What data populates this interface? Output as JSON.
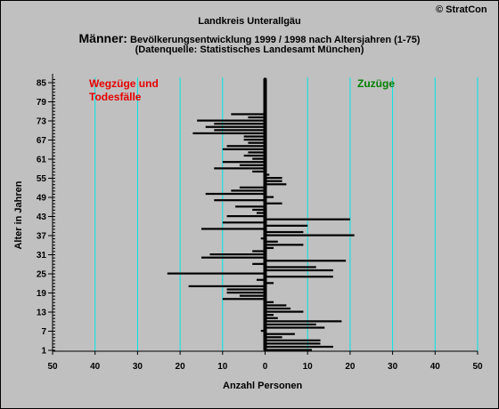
{
  "copyright": "© StratCon",
  "title_line1": "Landkreis Unterallgäu",
  "title_line2_big": "Männer:",
  "title_line2_rest": "Bevölkerungsentwicklung 1999 / 1998  nach Altersjahren (1-75)",
  "title_line3": "(Datenquelle: Statistisches Landesamt München)",
  "left_label_1": "Wegzüge und",
  "left_label_2": "Todesfälle",
  "right_label": "Zuzüge",
  "colors": {
    "background": "#c0c0c0",
    "grid": "#00e5e5",
    "bars": "#000000",
    "left_label": "#e60000",
    "right_label": "#008000"
  },
  "chart_data": {
    "type": "bar",
    "orientation": "horizontal",
    "xlabel": "Anzahl Personen",
    "ylabel": "Alter in Jahren",
    "x_ticks": [
      "50",
      "40",
      "30",
      "20",
      "10",
      "0",
      "10",
      "20",
      "30",
      "40",
      "50"
    ],
    "x_tick_values": [
      -50,
      -40,
      -30,
      -20,
      -10,
      0,
      10,
      20,
      30,
      40,
      50
    ],
    "xlim": [
      -50,
      50
    ],
    "y_ticks": [
      "1",
      "7",
      "13",
      "19",
      "25",
      "31",
      "37",
      "43",
      "49",
      "55",
      "61",
      "67",
      "73",
      "79",
      "85"
    ],
    "ylim": [
      1,
      86
    ],
    "grid": true,
    "series": [
      {
        "values": [
          {
            "age": 1,
            "value": 11
          },
          {
            "age": 2,
            "value": 16
          },
          {
            "age": 3,
            "value": 13
          },
          {
            "age": 4,
            "value": 13
          },
          {
            "age": 5,
            "value": 4
          },
          {
            "age": 6,
            "value": 7
          },
          {
            "age": 7,
            "value": -1
          },
          {
            "age": 8,
            "value": 14
          },
          {
            "age": 9,
            "value": 12
          },
          {
            "age": 10,
            "value": 18
          },
          {
            "age": 11,
            "value": 3
          },
          {
            "age": 12,
            "value": 2
          },
          {
            "age": 13,
            "value": 9
          },
          {
            "age": 14,
            "value": 6
          },
          {
            "age": 15,
            "value": 5
          },
          {
            "age": 16,
            "value": 2
          },
          {
            "age": 17,
            "value": -10
          },
          {
            "age": 18,
            "value": -6
          },
          {
            "age": 19,
            "value": -9
          },
          {
            "age": 20,
            "value": -9
          },
          {
            "age": 21,
            "value": -18
          },
          {
            "age": 22,
            "value": 2
          },
          {
            "age": 23,
            "value": -2
          },
          {
            "age": 24,
            "value": 16
          },
          {
            "age": 25,
            "value": -23
          },
          {
            "age": 26,
            "value": 16
          },
          {
            "age": 27,
            "value": 12
          },
          {
            "age": 28,
            "value": -3
          },
          {
            "age": 29,
            "value": 19
          },
          {
            "age": 30,
            "value": -15
          },
          {
            "age": 31,
            "value": -13
          },
          {
            "age": 32,
            "value": -3
          },
          {
            "age": 33,
            "value": 2
          },
          {
            "age": 34,
            "value": 9
          },
          {
            "age": 35,
            "value": 3
          },
          {
            "age": 36,
            "value": -1
          },
          {
            "age": 37,
            "value": 21
          },
          {
            "age": 38,
            "value": 9
          },
          {
            "age": 39,
            "value": -15
          },
          {
            "age": 40,
            "value": 10
          },
          {
            "age": 41,
            "value": -10
          },
          {
            "age": 42,
            "value": 20
          },
          {
            "age": 43,
            "value": -9
          },
          {
            "age": 44,
            "value": -2
          },
          {
            "age": 45,
            "value": -3
          },
          {
            "age": 46,
            "value": -7
          },
          {
            "age": 47,
            "value": 4
          },
          {
            "age": 48,
            "value": -12
          },
          {
            "age": 49,
            "value": 2
          },
          {
            "age": 50,
            "value": -14
          },
          {
            "age": 51,
            "value": -8
          },
          {
            "age": 52,
            "value": -6
          },
          {
            "age": 53,
            "value": 5
          },
          {
            "age": 54,
            "value": 4
          },
          {
            "age": 55,
            "value": 4
          },
          {
            "age": 56,
            "value": 1
          },
          {
            "age": 57,
            "value": -3
          },
          {
            "age": 58,
            "value": -12
          },
          {
            "age": 59,
            "value": -6
          },
          {
            "age": 60,
            "value": -10
          },
          {
            "age": 61,
            "value": -3
          },
          {
            "age": 62,
            "value": -5
          },
          {
            "age": 63,
            "value": -4
          },
          {
            "age": 64,
            "value": -10
          },
          {
            "age": 65,
            "value": -9
          },
          {
            "age": 66,
            "value": -4
          },
          {
            "age": 67,
            "value": -5
          },
          {
            "age": 68,
            "value": -5
          },
          {
            "age": 69,
            "value": -17
          },
          {
            "age": 70,
            "value": -12
          },
          {
            "age": 71,
            "value": -14
          },
          {
            "age": 72,
            "value": -12
          },
          {
            "age": 73,
            "value": -16
          },
          {
            "age": 74,
            "value": -4
          },
          {
            "age": 75,
            "value": -8
          }
        ]
      }
    ]
  }
}
